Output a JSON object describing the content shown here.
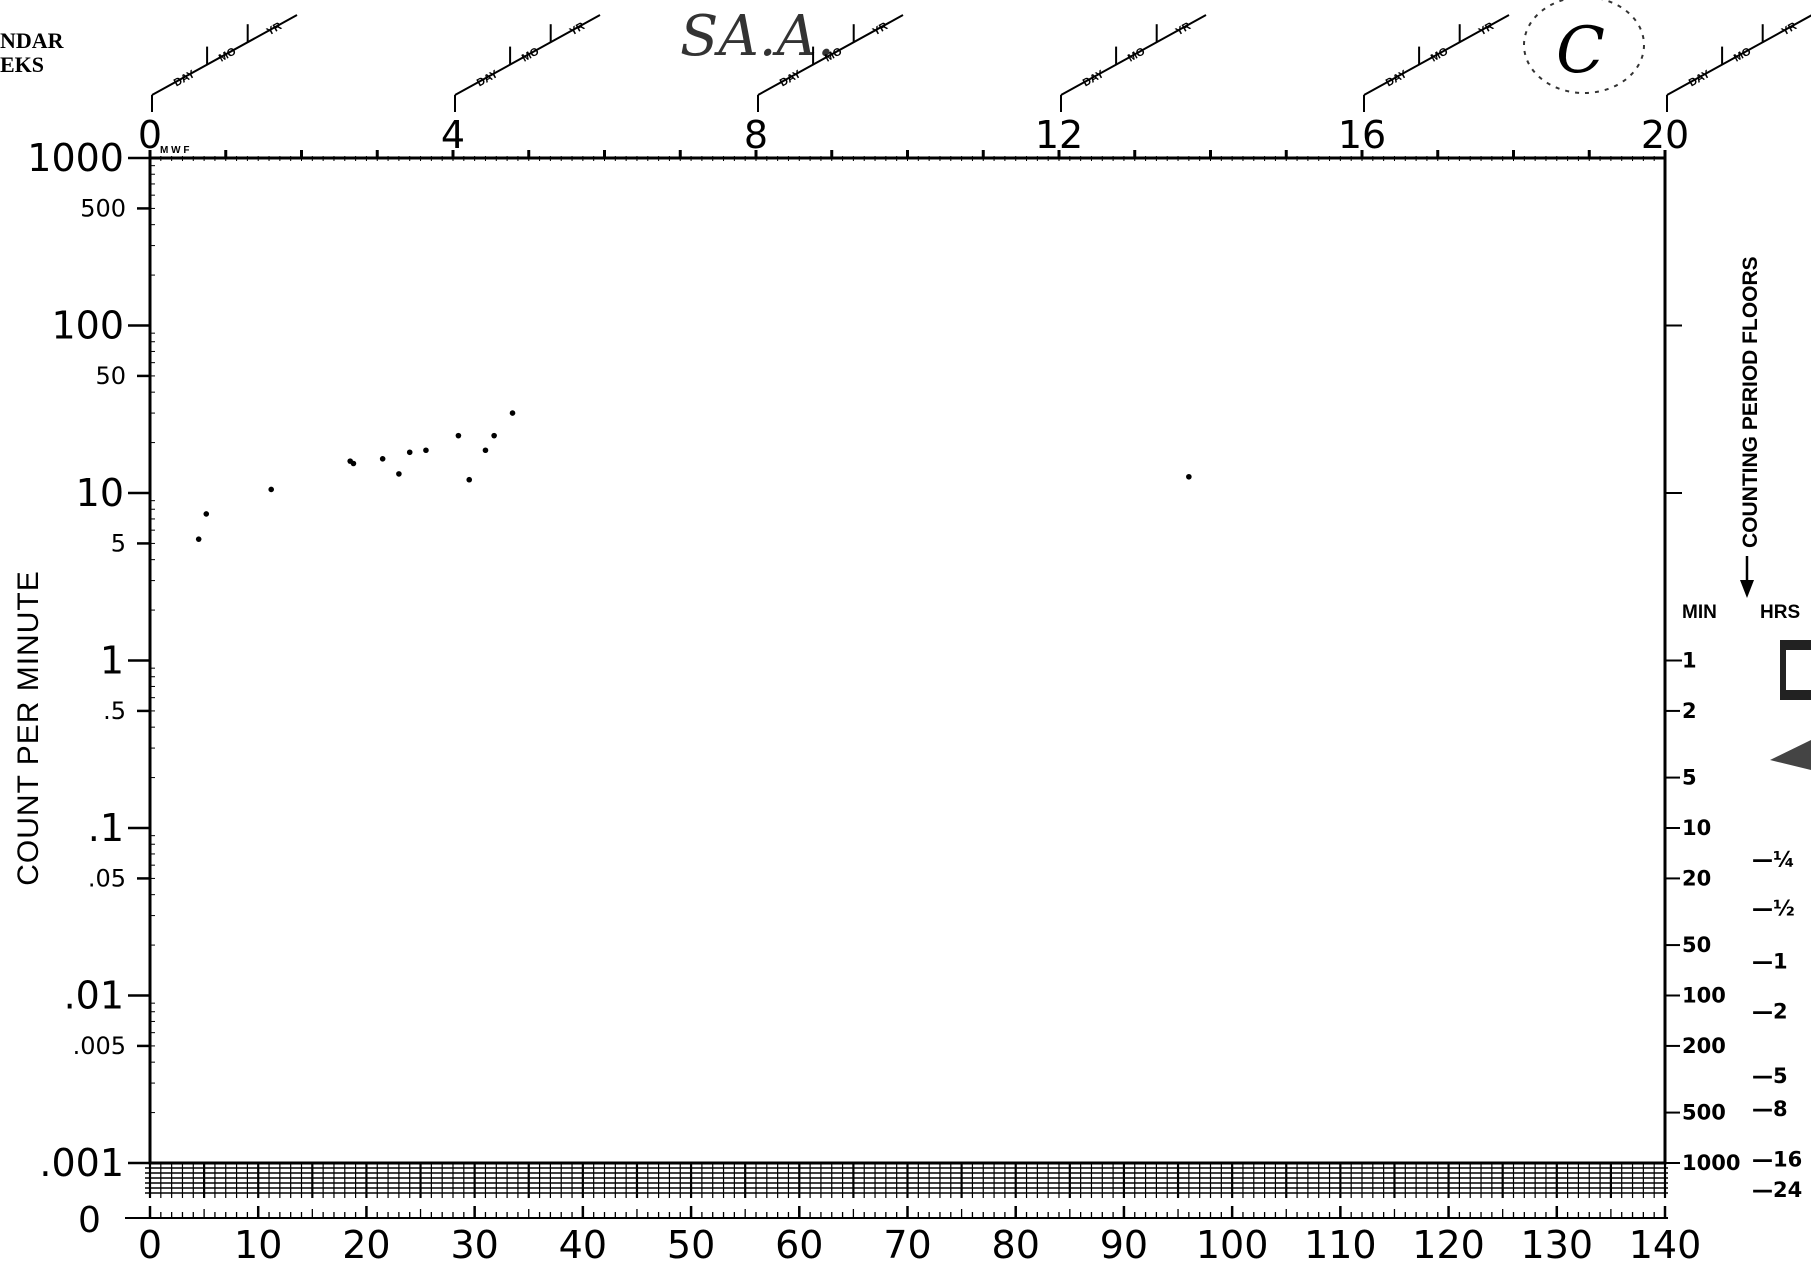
{
  "header": {
    "calendar_label": "NDAR",
    "weeks_label": "EKS",
    "handwritten_note": "SA.A.",
    "circled_letter": "C",
    "date_slot_labels": [
      "DAY",
      "MO",
      "YR"
    ],
    "day_marks": "M W F"
  },
  "right_axis": {
    "title": "COUNTING PERIOD FLOORS",
    "min_header": "MIN",
    "hrs_header": "HRS",
    "min_labels": [
      {
        "text": "1",
        "y": 1
      },
      {
        "text": "2",
        "y": 0.5
      },
      {
        "text": "5",
        "y": 0.2
      },
      {
        "text": "10",
        "y": 0.1
      },
      {
        "text": "20",
        "y": 0.05
      },
      {
        "text": "50",
        "y": 0.02
      },
      {
        "text": "100",
        "y": 0.01
      },
      {
        "text": "200",
        "y": 0.005
      },
      {
        "text": "500",
        "y": 0.002
      },
      {
        "text": "1000",
        "y": 0.001
      }
    ],
    "hrs_labels": [
      {
        "text": "—¼",
        "y": 0.065
      },
      {
        "text": "—½",
        "y": 0.033
      },
      {
        "text": "—1",
        "y": 0.016
      },
      {
        "text": "—2",
        "y": 0.008
      },
      {
        "text": "—5",
        "y": 0.0033
      },
      {
        "text": "—8",
        "y": 0.0021
      },
      {
        "text": "—16",
        "y": 0.00105
      },
      {
        "text": "—24",
        "y": 0.00069
      }
    ]
  },
  "chart_data": {
    "type": "scatter",
    "title": "",
    "ylabel": "COUNT PER MINUTE",
    "xlabel": "",
    "y_scale": "log",
    "ylim": [
      0.001,
      1000
    ],
    "xlim": [
      0,
      140
    ],
    "x_ticks": [
      "0",
      "10",
      "20",
      "30",
      "40",
      "50",
      "60",
      "70",
      "80",
      "90",
      "100",
      "110",
      "120",
      "130",
      "140"
    ],
    "x_top_ticks": [
      "0",
      "4",
      "8",
      "12",
      "16",
      "20"
    ],
    "x_top_lim": [
      0,
      20
    ],
    "y_tick_labels": [
      {
        "text": "1000",
        "value": 1000
      },
      {
        "text": "500",
        "value": 500
      },
      {
        "text": "100",
        "value": 100
      },
      {
        "text": "50",
        "value": 50
      },
      {
        "text": "10",
        "value": 10
      },
      {
        "text": "5",
        "value": 5
      },
      {
        "text": "1",
        "value": 1
      },
      {
        "text": ".5",
        "value": 0.5
      },
      {
        "text": ".1",
        "value": 0.1
      },
      {
        "text": ".05",
        "value": 0.05
      },
      {
        "text": ".01",
        "value": 0.01
      },
      {
        "text": ".005",
        "value": 0.005
      },
      {
        "text": ".001",
        "value": 0.001
      }
    ],
    "zero_label": "0",
    "series": [
      {
        "points": [
          {
            "x": 4.5,
            "y": 5.3
          },
          {
            "x": 5.2,
            "y": 7.5
          },
          {
            "x": 11.2,
            "y": 10.5
          },
          {
            "x": 18.5,
            "y": 15.5
          },
          {
            "x": 18.8,
            "y": 15
          },
          {
            "x": 21.5,
            "y": 16
          },
          {
            "x": 23,
            "y": 13
          },
          {
            "x": 24,
            "y": 17.5
          },
          {
            "x": 25.5,
            "y": 18
          },
          {
            "x": 28.5,
            "y": 22
          },
          {
            "x": 29.5,
            "y": 12
          },
          {
            "x": 31,
            "y": 18
          },
          {
            "x": 31.8,
            "y": 22
          },
          {
            "x": 33.5,
            "y": 30
          },
          {
            "x": 96,
            "y": 12.5
          }
        ]
      }
    ]
  }
}
